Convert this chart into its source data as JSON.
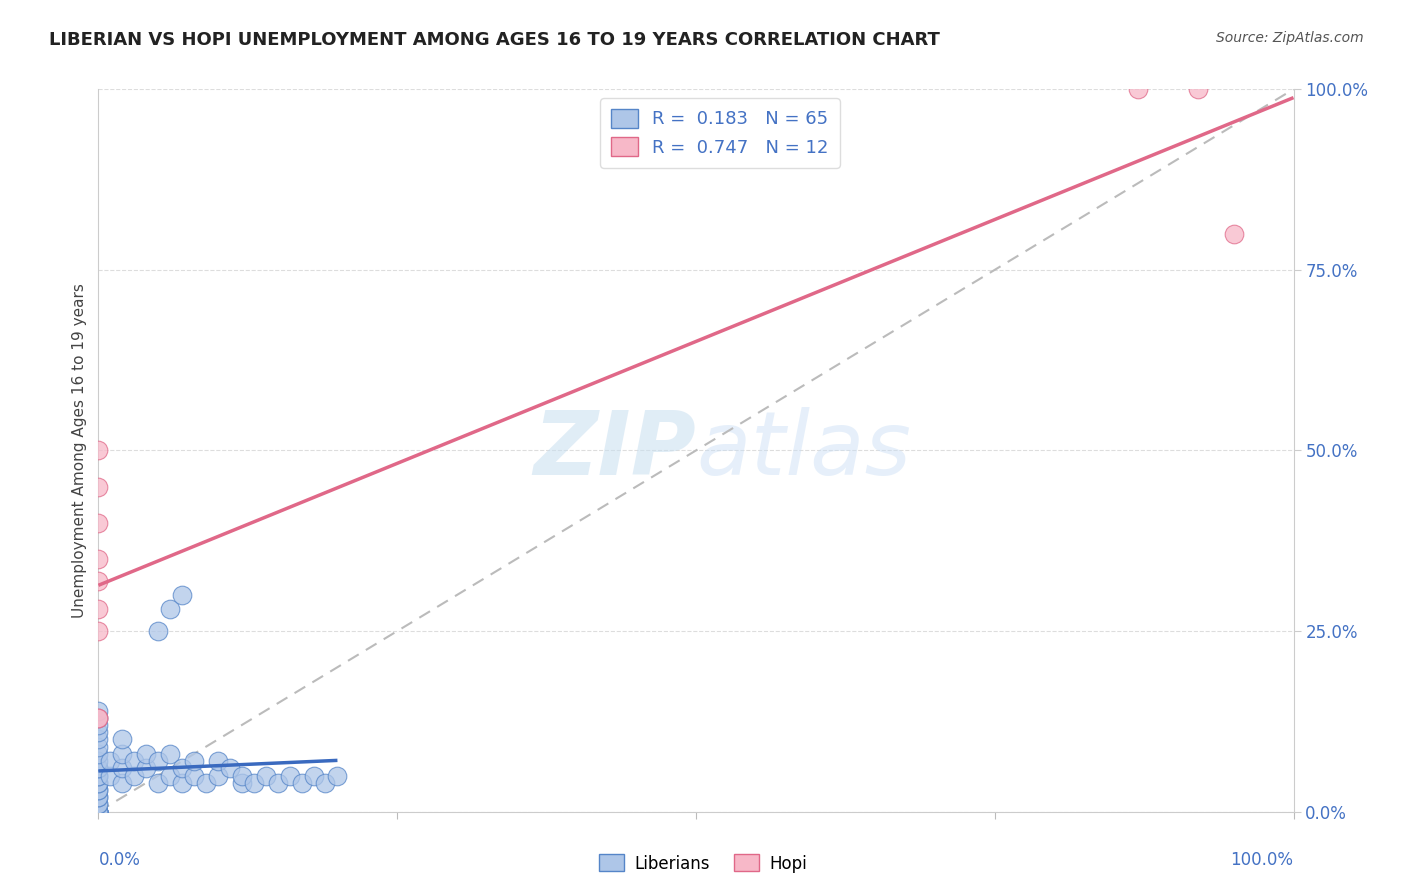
{
  "title": "LIBERIAN VS HOPI UNEMPLOYMENT AMONG AGES 16 TO 19 YEARS CORRELATION CHART",
  "source": "Source: ZipAtlas.com",
  "ylabel": "Unemployment Among Ages 16 to 19 years",
  "ylabel_right_labels": [
    "0.0%",
    "25.0%",
    "50.0%",
    "75.0%",
    "100.0%"
  ],
  "ylabel_right_ticks": [
    0.0,
    0.25,
    0.5,
    0.75,
    1.0
  ],
  "R_liberian": 0.183,
  "N_liberian": 65,
  "R_hopi": 0.747,
  "N_hopi": 12,
  "liberian_fill_color": "#aec6e8",
  "liberian_edge_color": "#5585c8",
  "hopi_fill_color": "#f7b8c8",
  "hopi_edge_color": "#e06888",
  "liberian_line_color": "#3a6abf",
  "hopi_line_color": "#e06888",
  "ref_line_color": "#bbbbbb",
  "grid_color": "#dddddd",
  "xlim": [
    0.0,
    1.0
  ],
  "ylim": [
    0.0,
    1.0
  ],
  "lib_x": [
    0.0,
    0.0,
    0.0,
    0.0,
    0.0,
    0.0,
    0.0,
    0.0,
    0.0,
    0.0,
    0.0,
    0.0,
    0.0,
    0.0,
    0.0,
    0.0,
    0.0,
    0.0,
    0.0,
    0.0,
    0.0,
    0.0,
    0.0,
    0.0,
    0.0,
    0.0,
    0.0,
    0.0,
    0.0,
    0.0,
    0.01,
    0.01,
    0.02,
    0.02,
    0.02,
    0.02,
    0.03,
    0.03,
    0.04,
    0.04,
    0.05,
    0.05,
    0.06,
    0.06,
    0.07,
    0.07,
    0.08,
    0.08,
    0.09,
    0.1,
    0.1,
    0.11,
    0.12,
    0.12,
    0.13,
    0.14,
    0.15,
    0.16,
    0.17,
    0.18,
    0.19,
    0.2,
    0.05,
    0.06,
    0.07
  ],
  "lib_y": [
    0.0,
    0.0,
    0.0,
    0.0,
    0.0,
    0.0,
    0.0,
    0.0,
    0.0,
    0.0,
    0.01,
    0.01,
    0.02,
    0.02,
    0.03,
    0.03,
    0.04,
    0.04,
    0.05,
    0.05,
    0.06,
    0.06,
    0.07,
    0.08,
    0.09,
    0.1,
    0.11,
    0.12,
    0.13,
    0.14,
    0.05,
    0.07,
    0.04,
    0.06,
    0.08,
    0.1,
    0.05,
    0.07,
    0.06,
    0.08,
    0.04,
    0.07,
    0.05,
    0.08,
    0.04,
    0.06,
    0.05,
    0.07,
    0.04,
    0.05,
    0.07,
    0.06,
    0.04,
    0.05,
    0.04,
    0.05,
    0.04,
    0.05,
    0.04,
    0.05,
    0.04,
    0.05,
    0.25,
    0.28,
    0.3
  ],
  "hopi_x": [
    0.0,
    0.0,
    0.0,
    0.0,
    0.0,
    0.0,
    0.0,
    0.0,
    0.0,
    0.87,
    0.92,
    0.95
  ],
  "hopi_y": [
    0.13,
    0.13,
    0.25,
    0.28,
    0.32,
    0.35,
    0.4,
    0.45,
    0.5,
    1.0,
    1.0,
    0.8
  ],
  "legend_entries": [
    {
      "label": "R =  0.183   N = 65",
      "fill": "#aec6e8",
      "edge": "#5585c8"
    },
    {
      "label": "R =  0.747   N = 12",
      "fill": "#f7b8c8",
      "edge": "#e06888"
    }
  ]
}
